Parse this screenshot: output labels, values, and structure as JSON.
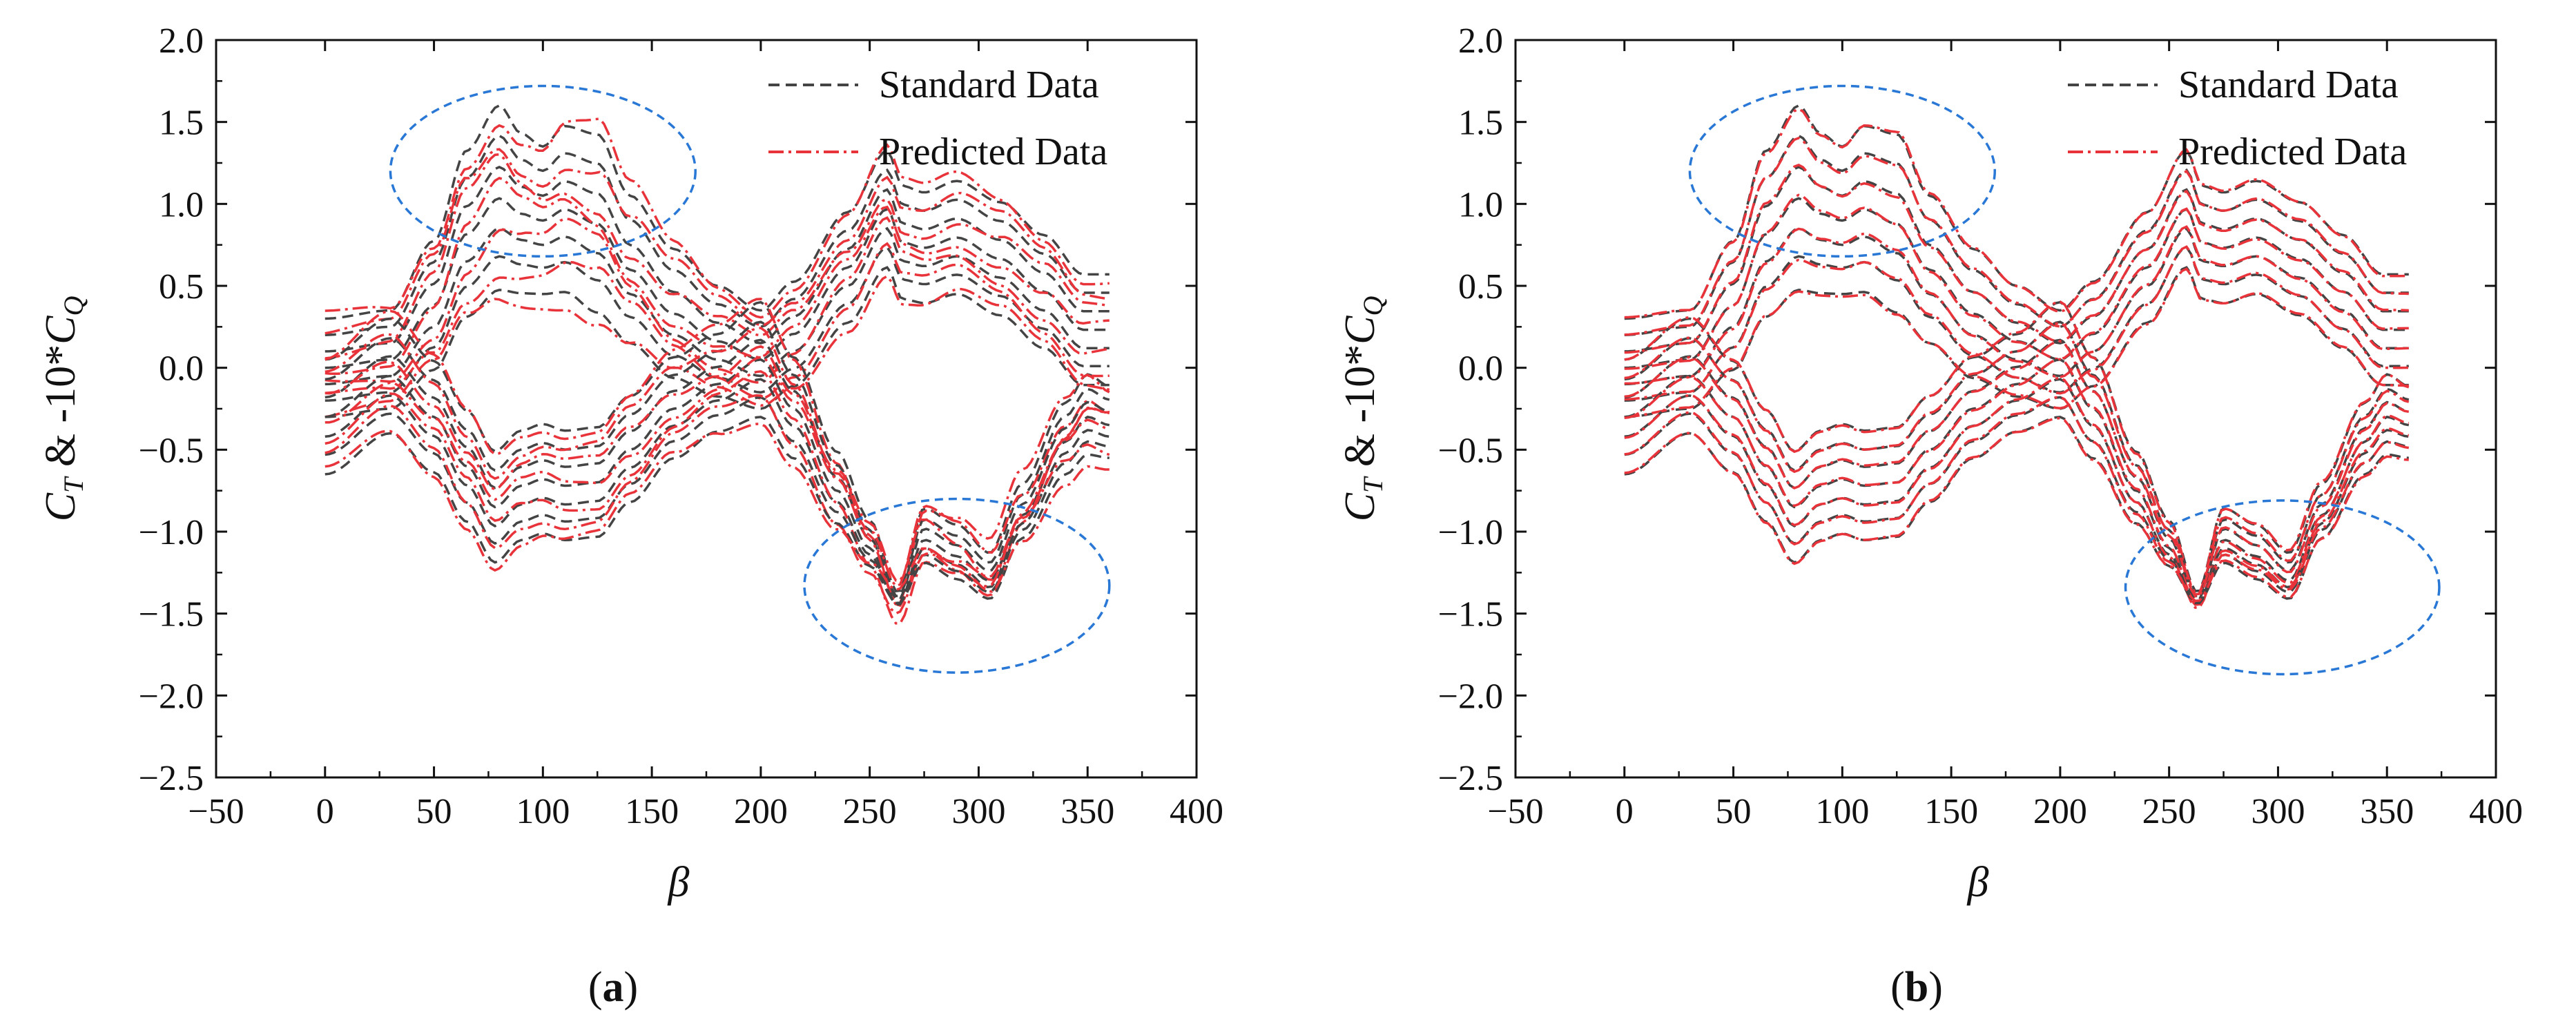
{
  "figure": {
    "panel_labels": [
      {
        "open": "(",
        "letter": "a",
        "close": ")"
      },
      {
        "open": "(",
        "letter": "b",
        "close": ")"
      }
    ]
  },
  "colors": {
    "standard": "#444444",
    "predicted": "#e8333a",
    "annotation": "#2a78d6",
    "axis": "#111111"
  },
  "chart_data": [
    {
      "type": "line",
      "panel": "a",
      "title": "",
      "xlabel": "β",
      "ylabel": {
        "c": "C",
        "t": "T",
        "mid": " & -10*",
        "q": "Q"
      },
      "xlim": [
        -50,
        400
      ],
      "ylim": [
        -2.5,
        2.0
      ],
      "xticks": [
        -50,
        0,
        50,
        100,
        150,
        200,
        250,
        300,
        350,
        400
      ],
      "yticks": [
        -2.5,
        -2.0,
        -1.5,
        -1.0,
        -0.5,
        0.0,
        0.5,
        1.0,
        1.5,
        2.0
      ],
      "xtick_labels": [
        "−50",
        "0",
        "50",
        "100",
        "150",
        "200",
        "250",
        "300",
        "350",
        "400"
      ],
      "ytick_labels": [
        "−2.5",
        "−2.0",
        "−1.5",
        "−1.0",
        "−0.5",
        "0.0",
        "0.5",
        "1.0",
        "1.5",
        "2.0"
      ],
      "grid": false,
      "legend": {
        "position": "top-right",
        "entries": [
          "Standard Data",
          "Predicted Data"
        ]
      },
      "series_families": {
        "ct": {
          "x": [
            0,
            30,
            50,
            65,
            80,
            90,
            100,
            110,
            125,
            140,
            160,
            180,
            200,
            215,
            240,
            258,
            265,
            275,
            290,
            310,
            330,
            348,
            360
          ],
          "base": [
            0.0,
            0.05,
            0.35,
            0.75,
            0.95,
            0.88,
            0.85,
            0.9,
            0.8,
            0.55,
            0.3,
            0.15,
            0.05,
            0.2,
            0.6,
            0.95,
            0.75,
            0.72,
            0.78,
            0.65,
            0.45,
            0.22,
            0.22
          ],
          "offsets": [
            -0.3,
            -0.2,
            -0.1,
            0.0,
            0.1,
            0.2,
            0.3
          ],
          "amp": [
            0.0,
            0.0,
            0.25,
            0.55,
            0.7,
            0.5,
            0.4,
            0.55,
            0.65,
            0.4,
            0.25,
            0.1,
            0.0,
            0.05,
            0.1,
            0.15,
            0.12,
            0.1,
            0.12,
            0.12,
            0.12,
            0.1,
            0.1
          ],
          "scale": [
            -0.25,
            -0.1,
            0.0,
            0.12,
            0.25,
            0.38,
            0.5
          ]
        },
        "cq": {
          "x": [
            0,
            30,
            50,
            65,
            78,
            90,
            100,
            110,
            125,
            140,
            160,
            180,
            200,
            215,
            235,
            250,
            263,
            275,
            290,
            305,
            320,
            340,
            350,
            360
          ],
          "base": [
            -0.3,
            -0.05,
            -0.3,
            -0.6,
            -0.85,
            -0.72,
            -0.68,
            -0.72,
            -0.7,
            -0.5,
            -0.25,
            -0.1,
            0.05,
            -0.25,
            -0.75,
            -1.1,
            -1.45,
            -1.05,
            -1.15,
            -1.3,
            -0.9,
            -0.45,
            -0.3,
            -0.35
          ],
          "offsets": [
            0.35,
            0.23,
            0.12,
            0.0,
            -0.12,
            -0.23,
            -0.35
          ],
          "amp": [
            0.0,
            0.0,
            0.02,
            0.02,
            0.02,
            0.03,
            0.03,
            0.03,
            0.03,
            0.05,
            0.08,
            0.1,
            0.0,
            0.08,
            0.25,
            0.4,
            0.6,
            0.35,
            0.35,
            0.4,
            0.35,
            0.25,
            0.2,
            0.25
          ],
          "scale": [
            -0.45,
            -0.3,
            -0.15,
            0.0,
            0.2,
            0.4,
            0.6
          ]
        }
      },
      "predicted_deviation": 0.12,
      "annotations": [
        {
          "shape": "ellipse",
          "cx": 100,
          "cy": 1.2,
          "rx": 70,
          "ry": 0.52
        },
        {
          "shape": "ellipse",
          "cx": 290,
          "cy": -1.33,
          "rx": 70,
          "ry": 0.53
        }
      ]
    },
    {
      "type": "line",
      "panel": "b",
      "title": "",
      "xlabel": "β",
      "ylabel": {
        "c": "C",
        "t": "T",
        "mid": " & -10*",
        "q": "Q"
      },
      "xlim": [
        -50,
        400
      ],
      "ylim": [
        -2.5,
        2.0
      ],
      "xticks": [
        -50,
        0,
        50,
        100,
        150,
        200,
        250,
        300,
        350,
        400
      ],
      "yticks": [
        -2.5,
        -2.0,
        -1.5,
        -1.0,
        -0.5,
        0.0,
        0.5,
        1.0,
        1.5,
        2.0
      ],
      "xtick_labels": [
        "−50",
        "0",
        "50",
        "100",
        "150",
        "200",
        "250",
        "300",
        "350",
        "400"
      ],
      "ytick_labels": [
        "−2.5",
        "−2.0",
        "−1.5",
        "−1.0",
        "−0.5",
        "0.0",
        "0.5",
        "1.0",
        "1.5",
        "2.0"
      ],
      "grid": false,
      "legend": {
        "position": "top-right",
        "entries": [
          "Standard Data",
          "Predicted Data"
        ]
      },
      "series_families": {
        "ct": {
          "x": [
            0,
            30,
            50,
            65,
            80,
            90,
            100,
            110,
            125,
            140,
            160,
            180,
            200,
            215,
            240,
            258,
            265,
            275,
            290,
            310,
            330,
            348,
            360
          ],
          "base": [
            0.0,
            0.05,
            0.35,
            0.75,
            0.95,
            0.88,
            0.85,
            0.9,
            0.8,
            0.55,
            0.3,
            0.15,
            0.05,
            0.2,
            0.6,
            0.95,
            0.75,
            0.72,
            0.78,
            0.65,
            0.45,
            0.22,
            0.22
          ],
          "offsets": [
            -0.3,
            -0.2,
            -0.1,
            0.0,
            0.1,
            0.2,
            0.3
          ],
          "amp": [
            0.0,
            0.0,
            0.25,
            0.55,
            0.7,
            0.5,
            0.4,
            0.55,
            0.65,
            0.4,
            0.25,
            0.1,
            0.0,
            0.05,
            0.1,
            0.15,
            0.12,
            0.1,
            0.12,
            0.12,
            0.12,
            0.1,
            0.1
          ],
          "scale": [
            -0.25,
            -0.1,
            0.0,
            0.12,
            0.25,
            0.38,
            0.5
          ]
        },
        "cq": {
          "x": [
            0,
            30,
            50,
            65,
            78,
            90,
            100,
            110,
            125,
            140,
            160,
            180,
            200,
            215,
            235,
            250,
            263,
            275,
            290,
            305,
            320,
            340,
            350,
            360
          ],
          "base": [
            -0.3,
            -0.05,
            -0.3,
            -0.6,
            -0.85,
            -0.72,
            -0.68,
            -0.72,
            -0.7,
            -0.5,
            -0.25,
            -0.1,
            0.05,
            -0.25,
            -0.75,
            -1.1,
            -1.45,
            -1.05,
            -1.15,
            -1.3,
            -0.9,
            -0.45,
            -0.3,
            -0.35
          ],
          "offsets": [
            0.35,
            0.23,
            0.12,
            0.0,
            -0.12,
            -0.23,
            -0.35
          ],
          "amp": [
            0.0,
            0.0,
            0.02,
            0.02,
            0.02,
            0.03,
            0.03,
            0.03,
            0.03,
            0.05,
            0.08,
            0.1,
            0.0,
            0.08,
            0.25,
            0.4,
            0.6,
            0.35,
            0.35,
            0.4,
            0.35,
            0.25,
            0.2,
            0.25
          ],
          "scale": [
            -0.45,
            -0.3,
            -0.15,
            0.0,
            0.2,
            0.4,
            0.6
          ]
        }
      },
      "predicted_deviation": 0.02,
      "annotations": [
        {
          "shape": "ellipse",
          "cx": 100,
          "cy": 1.2,
          "rx": 70,
          "ry": 0.52
        },
        {
          "shape": "ellipse",
          "cx": 302,
          "cy": -1.34,
          "rx": 72,
          "ry": 0.53
        }
      ]
    }
  ]
}
